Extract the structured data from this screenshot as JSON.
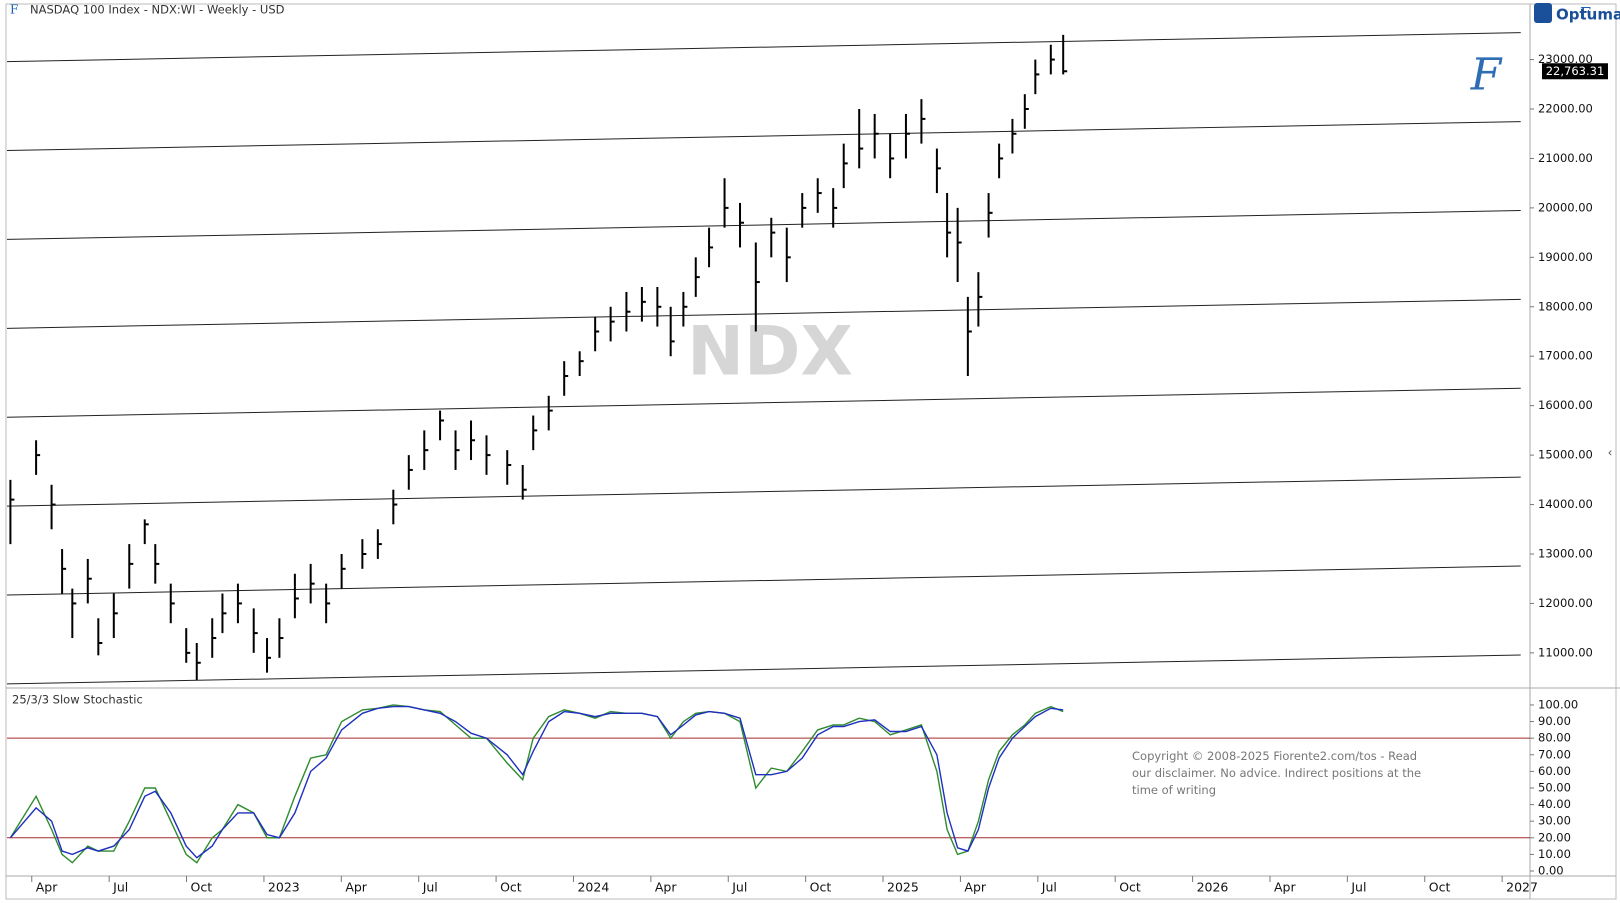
{
  "header": {
    "title": "NASDAQ 100 Index - NDX:WI - Weekly - USD",
    "brand": "Optuma"
  },
  "copyright": "Copyright © 2008-2025 Fiorente2.com/tos - Read our disclaimer. No advice. Indirect positions at the time of writing",
  "chart_data": [
    {
      "type": "ohlc",
      "watermark": "NDX",
      "x": [
        2022.181,
        2022.264,
        2022.314,
        2022.348,
        2022.381,
        2022.431,
        2022.465,
        2022.515,
        2022.565,
        2022.615,
        2022.649,
        2022.699,
        2022.749,
        2022.783,
        2022.833,
        2022.866,
        2022.916,
        2022.967,
        2023.01,
        2023.05,
        2023.1,
        2023.151,
        2023.201,
        2023.251,
        2023.318,
        2023.368,
        2023.418,
        2023.468,
        2023.518,
        2023.569,
        2023.619,
        2023.669,
        2023.719,
        2023.786,
        2023.836,
        2023.87,
        2023.92,
        2023.97,
        2024.02,
        2024.07,
        2024.12,
        2024.171,
        2024.221,
        2024.271,
        2024.314,
        2024.355,
        2024.395,
        2024.438,
        2024.488,
        2024.538,
        2024.589,
        2024.639,
        2024.689,
        2024.739,
        2024.789,
        2024.839,
        2024.873,
        2024.923,
        2024.973,
        2025.023,
        2025.074,
        2025.124,
        2025.174,
        2025.207,
        2025.241,
        2025.274,
        2025.308,
        2025.341,
        2025.375,
        2025.418,
        2025.458,
        2025.492,
        2025.542,
        2025.582
      ],
      "high": [
        14500,
        15300,
        14400,
        13100,
        12300,
        12900,
        11700,
        12200,
        13200,
        13700,
        13200,
        12400,
        11500,
        11200,
        11700,
        12200,
        12400,
        11900,
        11300,
        11700,
        12600,
        12800,
        12400,
        13000,
        13300,
        13500,
        14300,
        15000,
        15500,
        15900,
        15500,
        15700,
        15400,
        15100,
        14800,
        15800,
        16200,
        16900,
        17100,
        17800,
        18000,
        18300,
        18400,
        18400,
        18000,
        18300,
        19000,
        19600,
        20600,
        20100,
        19300,
        19800,
        19600,
        20300,
        20600,
        20400,
        21300,
        22000,
        21900,
        21500,
        21900,
        22200,
        21200,
        20300,
        20000,
        18200,
        18700,
        20300,
        21300,
        21800,
        22300,
        23000,
        23300,
        23500
      ],
      "low": [
        13200,
        14600,
        13500,
        12200,
        11300,
        12000,
        10950,
        11300,
        12300,
        13200,
        12400,
        11600,
        10800,
        10450,
        10900,
        11400,
        11600,
        11000,
        10600,
        10900,
        11700,
        12000,
        11600,
        12300,
        12700,
        12900,
        13600,
        14300,
        14700,
        15300,
        14700,
        14900,
        14600,
        14400,
        14100,
        15100,
        15500,
        16200,
        16600,
        17100,
        17300,
        17500,
        17700,
        17600,
        17000,
        17600,
        18200,
        18800,
        19600,
        19200,
        17500,
        19000,
        18500,
        19600,
        19900,
        19600,
        20400,
        20800,
        21000,
        20600,
        21000,
        21300,
        20300,
        19000,
        18500,
        16600,
        17600,
        19400,
        20600,
        21100,
        21600,
        22300,
        22700,
        22700
      ],
      "close": [
        14100,
        15000,
        14000,
        12700,
        12000,
        12500,
        11200,
        11800,
        12800,
        13600,
        12800,
        12000,
        11000,
        10800,
        11300,
        11800,
        12000,
        11400,
        10900,
        11300,
        12100,
        12400,
        12000,
        12700,
        13000,
        13200,
        14000,
        14700,
        15100,
        15700,
        15100,
        15300,
        15000,
        14800,
        14300,
        15500,
        15900,
        16600,
        16900,
        17500,
        17700,
        17900,
        18100,
        18000,
        17300,
        18000,
        18600,
        19200,
        20000,
        19700,
        18500,
        19500,
        19000,
        20000,
        20300,
        20000,
        20900,
        21200,
        21500,
        21000,
        21500,
        21800,
        20800,
        19500,
        19300,
        17500,
        18200,
        19900,
        21000,
        21500,
        22000,
        22700,
        23000,
        22763.31
      ],
      "last_price": {
        "value": 22763.31,
        "label": "22,763.31"
      },
      "color": "#000000",
      "level_x": [
        2022.17,
        2027.06
      ],
      "levels": [
        {
          "start": 22958,
          "end": 23544
        },
        {
          "start": 21160,
          "end": 21746
        },
        {
          "start": 19362,
          "end": 19948
        },
        {
          "start": 17564,
          "end": 18150
        },
        {
          "start": 15766,
          "end": 16352
        },
        {
          "start": 13968,
          "end": 14554
        },
        {
          "start": 12170,
          "end": 12756
        },
        {
          "start": 10372,
          "end": 10958
        }
      ],
      "xlim": [
        2022.17,
        2027.09
      ],
      "xticks": [
        {
          "value": 2022.25,
          "label": "Apr"
        },
        {
          "value": 2022.5,
          "label": "Jul"
        },
        {
          "value": 2022.75,
          "label": "Oct"
        },
        {
          "value": 2023,
          "label": "2023"
        },
        {
          "value": 2023.25,
          "label": "Apr"
        },
        {
          "value": 2023.5,
          "label": "Jul"
        },
        {
          "value": 2023.75,
          "label": "Oct"
        },
        {
          "value": 2024,
          "label": "2024"
        },
        {
          "value": 2024.25,
          "label": "Apr"
        },
        {
          "value": 2024.5,
          "label": "Jul"
        },
        {
          "value": 2024.75,
          "label": "Oct"
        },
        {
          "value": 2025,
          "label": "2025"
        },
        {
          "value": 2025.25,
          "label": "Apr"
        },
        {
          "value": 2025.5,
          "label": "Jul"
        },
        {
          "value": 2025.75,
          "label": "Oct"
        },
        {
          "value": 2026,
          "label": "2026"
        },
        {
          "value": 2026.25,
          "label": "Apr"
        },
        {
          "value": 2026.5,
          "label": "Jul"
        },
        {
          "value": 2026.75,
          "label": "Oct"
        },
        {
          "value": 2027,
          "label": "2027"
        }
      ],
      "ylim": [
        10330,
        23780
      ],
      "yticks": [
        {
          "value": 11000,
          "label": "11000.00"
        },
        {
          "value": 12000,
          "label": "12000.00"
        },
        {
          "value": 13000,
          "label": "13000.00"
        },
        {
          "value": 14000,
          "label": "14000.00"
        },
        {
          "value": 15000,
          "label": "15000.00"
        },
        {
          "value": 16000,
          "label": "16000.00"
        },
        {
          "value": 17000,
          "label": "17000.00"
        },
        {
          "value": 18000,
          "label": "18000.00"
        },
        {
          "value": 19000,
          "label": "19000.00"
        },
        {
          "value": 20000,
          "label": "20000.00"
        },
        {
          "value": 21000,
          "label": "21000.00"
        },
        {
          "value": 22000,
          "label": "22000.00"
        },
        {
          "value": 23000,
          "label": "23000.00"
        }
      ]
    },
    {
      "type": "line",
      "title": "25/3/3 Slow Stochastic",
      "series": [
        {
          "color": "#2e8b2e",
          "values": [
            20,
            45,
            25,
            10,
            5,
            15,
            12,
            12,
            30,
            50,
            50,
            30,
            10,
            5,
            20,
            25,
            40,
            35,
            20,
            20,
            45,
            68,
            70,
            90,
            97,
            98,
            100,
            99,
            97,
            96,
            88,
            80,
            80,
            65,
            55,
            80,
            93,
            97,
            95,
            92,
            96,
            95,
            95,
            93,
            80,
            90,
            95,
            96,
            95,
            90,
            50,
            62,
            60,
            72,
            85,
            88,
            88,
            92,
            90,
            82,
            85,
            88,
            60,
            25,
            10,
            12,
            30,
            55,
            72,
            82,
            88,
            95,
            99,
            96
          ]
        },
        {
          "color": "#1f2fbf",
          "values": [
            20,
            38,
            30,
            12,
            10,
            14,
            12,
            15,
            25,
            45,
            48,
            35,
            15,
            8,
            15,
            25,
            35,
            35,
            22,
            20,
            35,
            60,
            68,
            85,
            95,
            98,
            99,
            99,
            97,
            95,
            90,
            83,
            80,
            70,
            58,
            72,
            90,
            96,
            95,
            93,
            95,
            95,
            95,
            93,
            82,
            88,
            94,
            96,
            95,
            92,
            58,
            58,
            60,
            68,
            82,
            87,
            87,
            90,
            91,
            84,
            84,
            87,
            70,
            35,
            14,
            12,
            25,
            50,
            68,
            80,
            87,
            93,
            98,
            97
          ]
        }
      ],
      "ref_lines": [
        80,
        20
      ],
      "ref_color": "#a52a2a",
      "ylim": [
        -3,
        109
      ],
      "yticks": [
        {
          "value": 0,
          "label": "0.00"
        },
        {
          "value": 10,
          "label": "10.00"
        },
        {
          "value": 20,
          "label": "20.00"
        },
        {
          "value": 30,
          "label": "30.00"
        },
        {
          "value": 40,
          "label": "40.00"
        },
        {
          "value": 50,
          "label": "50.00"
        },
        {
          "value": 60,
          "label": "60.00"
        },
        {
          "value": 70,
          "label": "70.00"
        },
        {
          "value": 80,
          "label": "80.00"
        },
        {
          "value": 90,
          "label": "90.00"
        },
        {
          "value": 100,
          "label": "100.00"
        }
      ]
    }
  ]
}
